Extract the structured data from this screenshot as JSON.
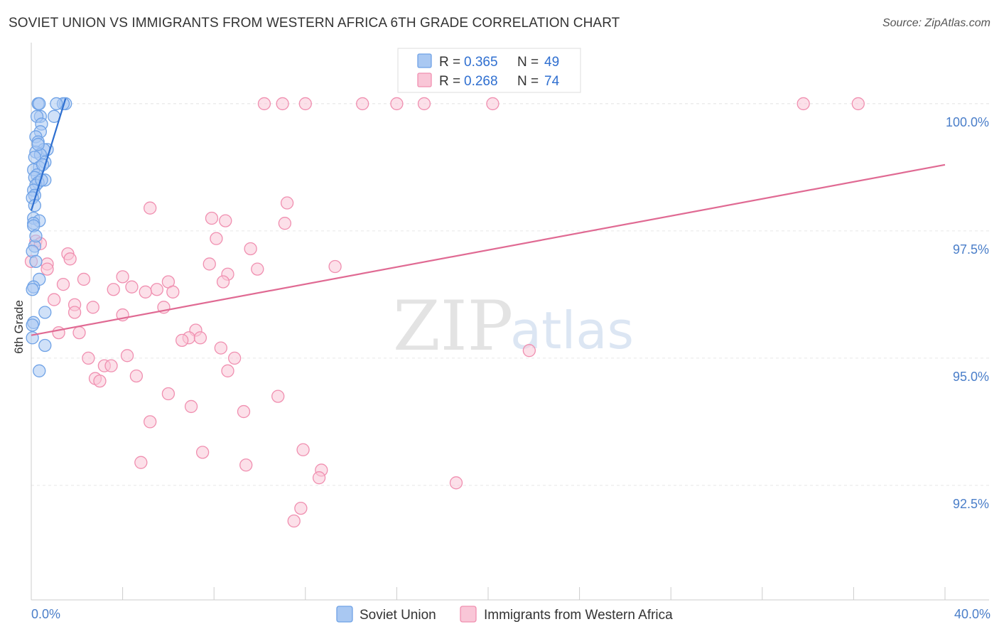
{
  "title": "SOVIET UNION VS IMMIGRANTS FROM WESTERN AFRICA 6TH GRADE CORRELATION CHART",
  "source": "Source: ZipAtlas.com",
  "watermark": {
    "zip": "ZIP",
    "atlas": "atlas"
  },
  "chart_data": {
    "type": "scatter",
    "title": "SOVIET UNION VS IMMIGRANTS FROM WESTERN AFRICA 6TH GRADE CORRELATION CHART",
    "xlabel": "",
    "ylabel": "6th Grade",
    "xlim": [
      0,
      40
    ],
    "ylim": [
      90.25,
      101.2
    ],
    "x_tick_labels": [
      "0.0%",
      "40.0%"
    ],
    "y_ticks": [
      {
        "value": 92.5,
        "label": "92.5%"
      },
      {
        "value": 95.0,
        "label": "95.0%"
      },
      {
        "value": 97.5,
        "label": "97.5%"
      },
      {
        "value": 100.0,
        "label": "100.0%"
      }
    ],
    "grid": true,
    "legend": {
      "position": "top-center",
      "entries": [
        {
          "r_label": "R = ",
          "r": "0.365",
          "n_label": "N = ",
          "n": "49",
          "color": "#6fa2e6"
        },
        {
          "r_label": "R = ",
          "r": "0.268",
          "n_label": "N = ",
          "n": "74",
          "color": "#f08fb0"
        }
      ]
    },
    "series": [
      {
        "name": "Soviet Union",
        "color": "#6fa2e6",
        "fill": "#a9c8f2",
        "trend_color": "#2e6fd0",
        "trend": {
          "x": [
            0.0,
            1.5
          ],
          "y": [
            97.9,
            100.1
          ]
        },
        "points": [
          [
            0.3,
            100.0
          ],
          [
            0.35,
            100.0
          ],
          [
            1.5,
            100.0
          ],
          [
            1.4,
            100.0
          ],
          [
            1.1,
            100.0
          ],
          [
            0.4,
            99.75
          ],
          [
            0.25,
            99.75
          ],
          [
            1.0,
            99.75
          ],
          [
            0.45,
            99.6
          ],
          [
            0.4,
            99.45
          ],
          [
            0.2,
            99.35
          ],
          [
            0.3,
            99.25
          ],
          [
            0.7,
            99.1
          ],
          [
            0.55,
            99.1
          ],
          [
            0.2,
            99.05
          ],
          [
            0.4,
            99.0
          ],
          [
            0.15,
            98.95
          ],
          [
            0.6,
            98.85
          ],
          [
            0.35,
            98.75
          ],
          [
            0.1,
            98.7
          ],
          [
            0.25,
            98.6
          ],
          [
            0.15,
            98.55
          ],
          [
            0.6,
            98.5
          ],
          [
            0.3,
            98.45
          ],
          [
            0.2,
            98.4
          ],
          [
            0.1,
            98.3
          ],
          [
            0.15,
            98.2
          ],
          [
            0.05,
            98.15
          ],
          [
            0.1,
            97.75
          ],
          [
            0.35,
            97.7
          ],
          [
            0.1,
            97.65
          ],
          [
            0.1,
            97.6
          ],
          [
            0.15,
            97.2
          ],
          [
            0.05,
            97.1
          ],
          [
            0.35,
            96.55
          ],
          [
            0.1,
            96.4
          ],
          [
            0.05,
            96.35
          ],
          [
            0.6,
            95.9
          ],
          [
            0.1,
            95.7
          ],
          [
            0.05,
            95.65
          ],
          [
            0.05,
            95.4
          ],
          [
            0.6,
            95.25
          ],
          [
            0.35,
            94.75
          ],
          [
            0.2,
            96.9
          ],
          [
            0.15,
            98.0
          ],
          [
            0.45,
            98.5
          ],
          [
            0.3,
            99.2
          ],
          [
            0.5,
            98.8
          ],
          [
            0.2,
            97.4
          ]
        ]
      },
      {
        "name": "Immigrants from Western Africa",
        "color": "#f08fb0",
        "fill": "#f9c6d7",
        "trend_color": "#e06a93",
        "trend": {
          "x": [
            0.0,
            40.0
          ],
          "y": [
            95.45,
            98.8
          ]
        },
        "points": [
          [
            10.2,
            100.0
          ],
          [
            11.0,
            100.0
          ],
          [
            12.0,
            100.0
          ],
          [
            14.5,
            100.0
          ],
          [
            16.0,
            100.0
          ],
          [
            17.2,
            100.0
          ],
          [
            20.2,
            100.0
          ],
          [
            33.8,
            100.0
          ],
          [
            36.2,
            100.0
          ],
          [
            11.2,
            98.05
          ],
          [
            5.2,
            97.95
          ],
          [
            7.9,
            97.75
          ],
          [
            8.5,
            97.7
          ],
          [
            11.1,
            97.65
          ],
          [
            8.1,
            97.35
          ],
          [
            0.2,
            97.3
          ],
          [
            0.4,
            97.25
          ],
          [
            9.6,
            97.15
          ],
          [
            1.6,
            97.05
          ],
          [
            1.7,
            96.95
          ],
          [
            0.0,
            96.9
          ],
          [
            0.7,
            96.85
          ],
          [
            7.8,
            96.85
          ],
          [
            0.7,
            96.75
          ],
          [
            9.9,
            96.75
          ],
          [
            13.3,
            96.8
          ],
          [
            8.6,
            96.65
          ],
          [
            4.0,
            96.6
          ],
          [
            2.3,
            96.55
          ],
          [
            6.0,
            96.5
          ],
          [
            8.4,
            96.5
          ],
          [
            1.4,
            96.45
          ],
          [
            4.4,
            96.4
          ],
          [
            3.6,
            96.35
          ],
          [
            6.2,
            96.3
          ],
          [
            5.5,
            96.35
          ],
          [
            5.0,
            96.3
          ],
          [
            1.0,
            96.15
          ],
          [
            1.9,
            96.05
          ],
          [
            2.7,
            96.0
          ],
          [
            5.8,
            96.0
          ],
          [
            1.9,
            95.9
          ],
          [
            4.0,
            95.85
          ],
          [
            7.2,
            95.55
          ],
          [
            1.2,
            95.5
          ],
          [
            2.1,
            95.5
          ],
          [
            6.9,
            95.4
          ],
          [
            6.6,
            95.35
          ],
          [
            7.4,
            95.4
          ],
          [
            8.3,
            95.2
          ],
          [
            21.8,
            95.15
          ],
          [
            4.2,
            95.05
          ],
          [
            2.5,
            95.0
          ],
          [
            8.9,
            95.0
          ],
          [
            3.2,
            94.85
          ],
          [
            3.5,
            94.85
          ],
          [
            8.6,
            94.75
          ],
          [
            4.6,
            94.65
          ],
          [
            2.8,
            94.6
          ],
          [
            3.0,
            94.55
          ],
          [
            6.0,
            94.3
          ],
          [
            10.8,
            94.25
          ],
          [
            7.0,
            94.05
          ],
          [
            9.3,
            93.95
          ],
          [
            5.2,
            93.75
          ],
          [
            11.9,
            93.2
          ],
          [
            7.5,
            93.15
          ],
          [
            4.8,
            92.95
          ],
          [
            9.4,
            92.9
          ],
          [
            12.7,
            92.8
          ],
          [
            12.6,
            92.65
          ],
          [
            18.6,
            92.55
          ],
          [
            11.8,
            92.05
          ],
          [
            11.5,
            91.8
          ]
        ]
      }
    ]
  },
  "bottom_legend": [
    {
      "label": "Soviet Union",
      "color": "#6fa2e6",
      "fill": "#a9c8f2"
    },
    {
      "label": "Immigrants from Western Africa",
      "color": "#f08fb0",
      "fill": "#f9c6d7"
    }
  ]
}
